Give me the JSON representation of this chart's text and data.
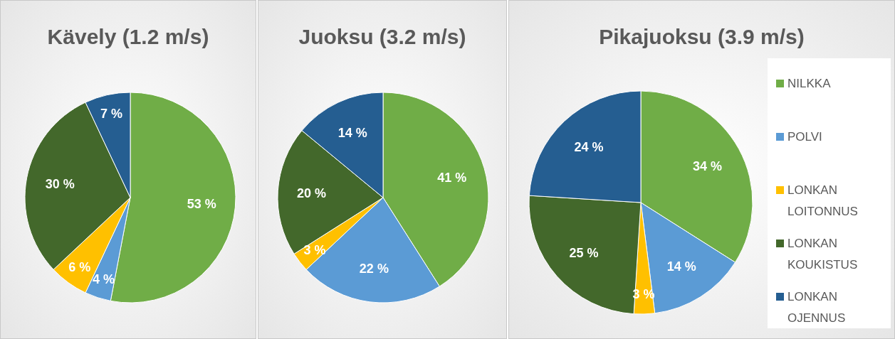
{
  "chart_data": [
    {
      "type": "pie",
      "title": "Kävely (1.2 m/s)",
      "categories": [
        null,
        null,
        null,
        null,
        null
      ],
      "values": [
        53,
        4,
        6,
        30,
        7
      ],
      "value_labels": [
        "53 %",
        "4 %",
        "6 %",
        "30 %",
        "7 %"
      ],
      "colors": [
        "#70ad47",
        "#5b9bd5",
        "#ffc000",
        "#43682b",
        "#255e91"
      ],
      "legend": false
    },
    {
      "type": "pie",
      "title": "Juoksu (3.2 m/s)",
      "categories": [
        null,
        null,
        null,
        null,
        null
      ],
      "values": [
        41,
        22,
        3,
        20,
        14
      ],
      "value_labels": [
        "41 %",
        "22 %",
        "3 %",
        "20 %",
        "14 %"
      ],
      "colors": [
        "#70ad47",
        "#5b9bd5",
        "#ffc000",
        "#43682b",
        "#255e91"
      ],
      "legend": false
    },
    {
      "type": "pie",
      "title": "Pikajuoksu (3.9 m/s)",
      "categories": [
        "NILKKA",
        "POLVI",
        "LONKAN LOITONNUS",
        "LONKAN KOUKISTUS",
        "LONKAN OJENNUS"
      ],
      "values": [
        34,
        14,
        3,
        25,
        24
      ],
      "value_labels": [
        "34 %",
        "14 %",
        "3 %",
        "25 %",
        "24 %"
      ],
      "colors": [
        "#70ad47",
        "#5b9bd5",
        "#ffc000",
        "#43682b",
        "#255e91"
      ],
      "legend": "right"
    }
  ]
}
